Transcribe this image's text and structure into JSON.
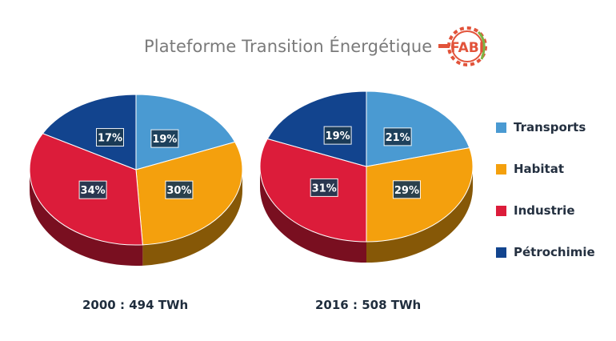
{
  "header": {
    "title": "Plateforme Transition Énergétique",
    "logo_text": "FABI"
  },
  "colors": {
    "transports": "#4a9ad2",
    "habitat": "#f4a00d",
    "industrie": "#dc1c3a",
    "petrochimie": "#12448e"
  },
  "chart_data": [
    {
      "type": "pie",
      "title": "2000 : 494 TWh",
      "categories": [
        "Transports",
        "Habitat",
        "Industrie",
        "Pétrochimie"
      ],
      "values": [
        19,
        30,
        34,
        17
      ],
      "labels": [
        "19%",
        "30%",
        "34%",
        "17%"
      ],
      "legend": "right"
    },
    {
      "type": "pie",
      "title": "2016 : 508 TWh",
      "categories": [
        "Transports",
        "Habitat",
        "Industrie",
        "Pétrochimie"
      ],
      "values": [
        21,
        29,
        31,
        19
      ],
      "labels": [
        "21%",
        "29%",
        "31%",
        "19%"
      ],
      "legend": "right"
    }
  ],
  "legend": {
    "items": [
      {
        "label": "Transports",
        "color": "#4a9ad2"
      },
      {
        "label": "Habitat",
        "color": "#f4a00d"
      },
      {
        "label": "Industrie",
        "color": "#dc1c3a"
      },
      {
        "label": "Pétrochimie",
        "color": "#12448e"
      }
    ]
  }
}
